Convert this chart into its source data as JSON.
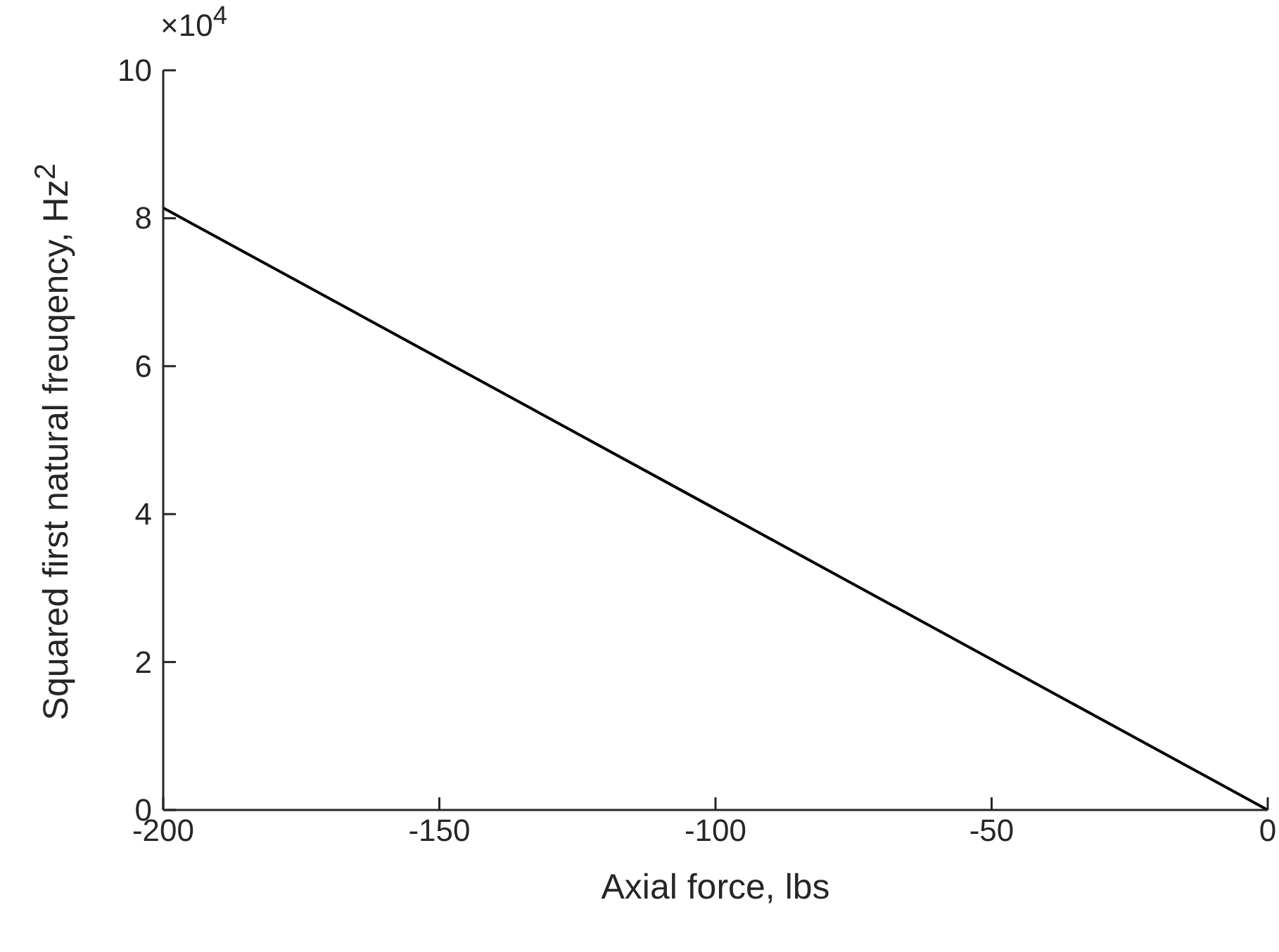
{
  "chart_data": {
    "type": "line",
    "xlabel": "Axial force, lbs",
    "ylabel": "Squared first natural freuqency, Hz$^{2}$",
    "annotations": [
      "×10$^{4}$"
    ],
    "x": [
      -200,
      0
    ],
    "series": [
      {
        "color": "#000000",
        "values": [
          8.14,
          0
        ]
      }
    ],
    "xlim": [
      -200,
      0
    ],
    "xticks": [
      -200,
      -150,
      -100,
      -50,
      0
    ],
    "ylim": [
      0,
      10
    ],
    "yticks": [
      0,
      2,
      4,
      6,
      8,
      10
    ],
    "grid": false,
    "legend": false,
    "marker": "none",
    "line_style": "solid"
  }
}
